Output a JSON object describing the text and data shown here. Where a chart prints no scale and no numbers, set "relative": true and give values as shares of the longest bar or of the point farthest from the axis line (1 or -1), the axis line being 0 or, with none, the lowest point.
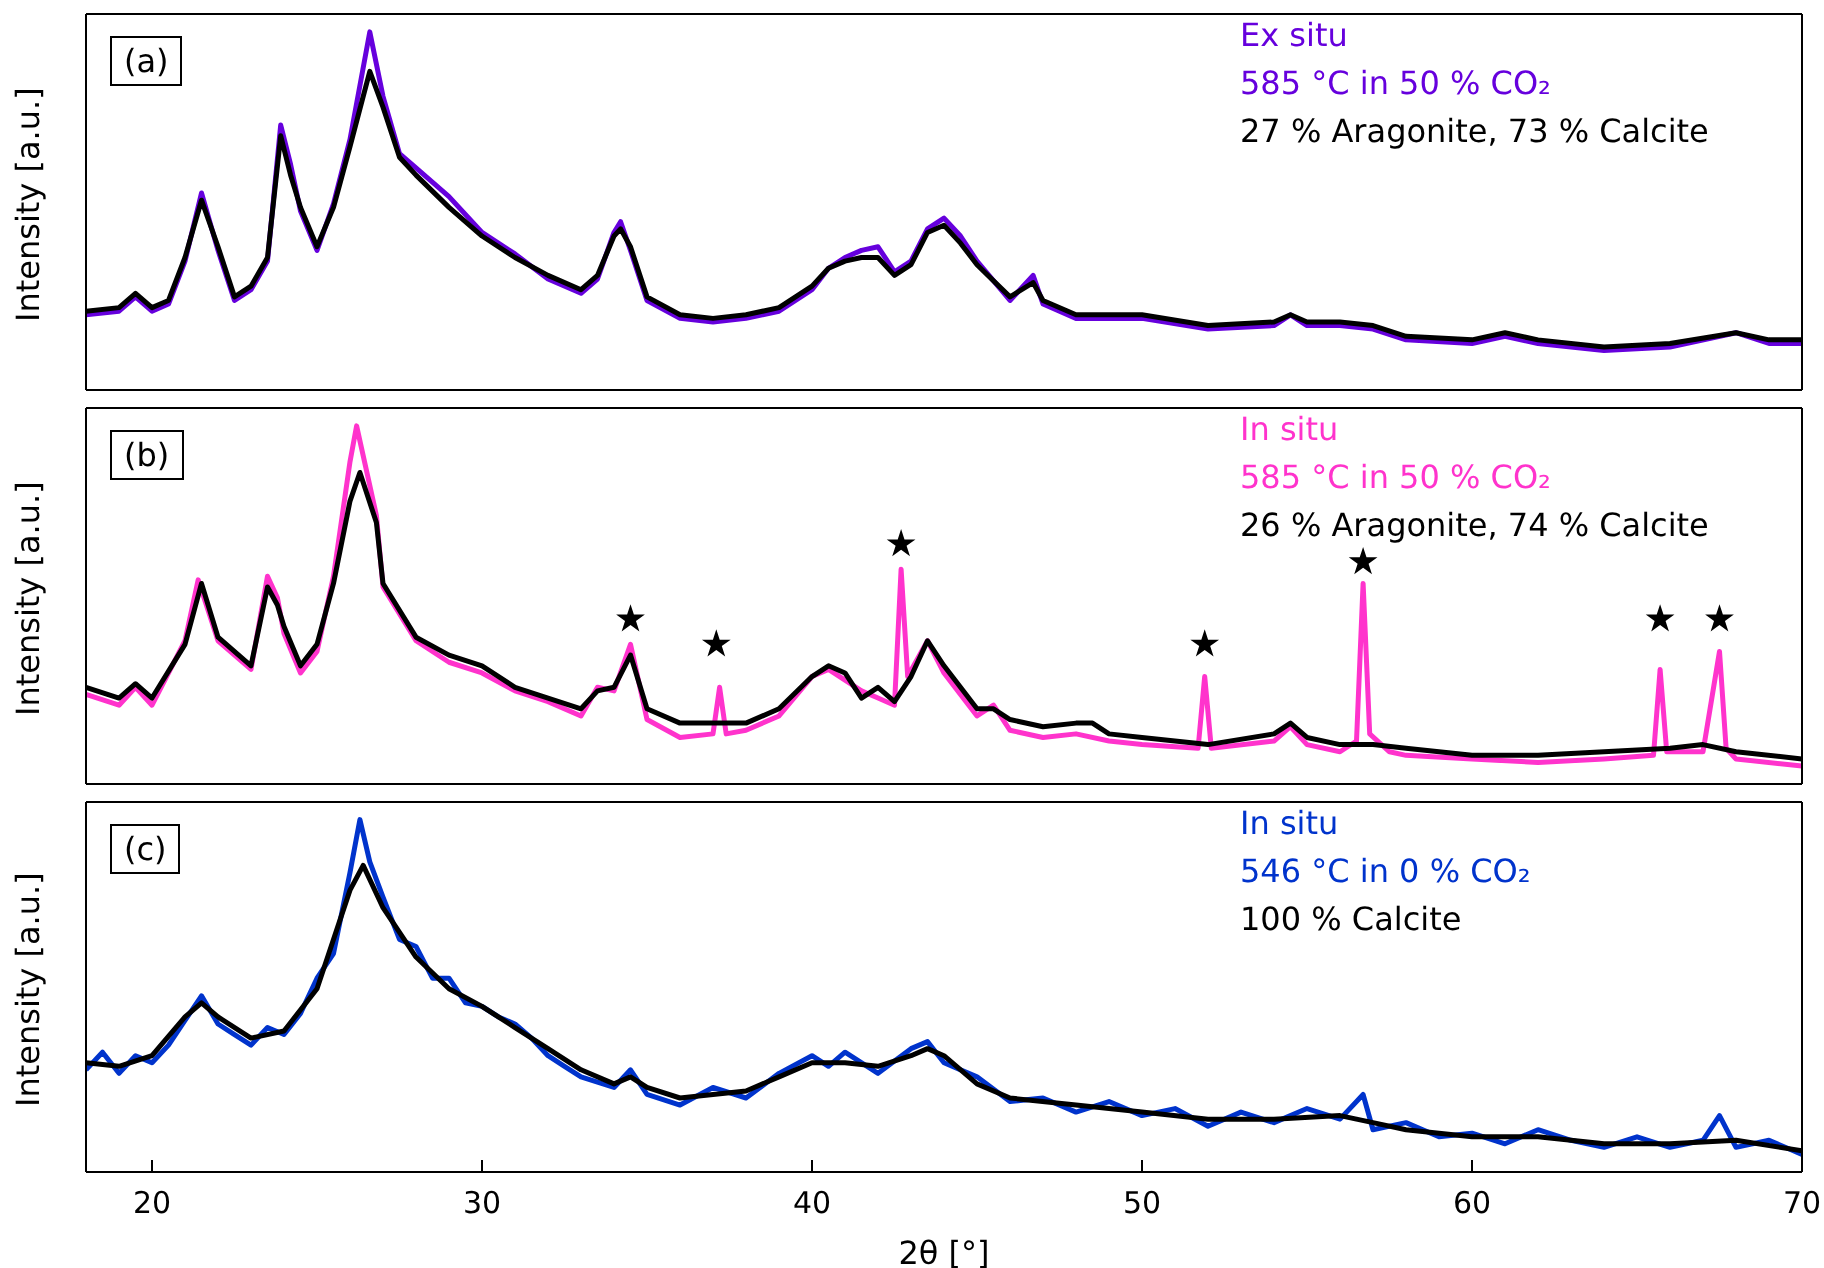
{
  "chart_data": [
    {
      "type": "line",
      "relative": true,
      "ylabel": "Intensity [a.u.]",
      "xlim": [
        18,
        70
      ],
      "xticks": [
        20,
        30,
        40,
        50,
        60,
        70
      ],
      "tick_labels": false,
      "marker": "none",
      "annotations": [
        "(a)",
        "Ex situ",
        "585 °C in 50 % CO₂",
        "27 % Aragonite, 73 % Calcite"
      ],
      "series": [
        {
          "color": "#6600dd",
          "x": [
            18,
            19,
            19.5,
            20,
            20.5,
            21,
            21.5,
            22,
            22.5,
            23,
            23.5,
            23.9,
            24.2,
            24.5,
            25,
            25.5,
            26,
            26.6,
            27,
            27.5,
            28,
            29,
            30,
            31,
            32,
            33,
            33.5,
            34,
            34.2,
            34.5,
            35,
            36,
            37,
            38,
            39,
            40,
            40.5,
            41,
            41.5,
            42,
            42.5,
            43,
            43.5,
            44,
            44.5,
            45,
            46,
            46.7,
            47,
            48,
            50,
            52,
            54,
            54.5,
            55,
            56,
            57,
            58,
            60,
            61,
            62,
            64,
            66,
            68,
            69,
            70
          ],
          "values": [
            0.21,
            0.22,
            0.26,
            0.22,
            0.24,
            0.36,
            0.55,
            0.39,
            0.25,
            0.28,
            0.36,
            0.74,
            0.63,
            0.5,
            0.39,
            0.52,
            0.7,
            1.0,
            0.82,
            0.66,
            0.62,
            0.54,
            0.44,
            0.38,
            0.31,
            0.27,
            0.31,
            0.44,
            0.47,
            0.39,
            0.25,
            0.2,
            0.19,
            0.2,
            0.22,
            0.28,
            0.34,
            0.37,
            0.39,
            0.4,
            0.33,
            0.36,
            0.45,
            0.48,
            0.43,
            0.36,
            0.25,
            0.32,
            0.24,
            0.2,
            0.2,
            0.17,
            0.18,
            0.21,
            0.18,
            0.18,
            0.17,
            0.14,
            0.13,
            0.15,
            0.13,
            0.11,
            0.12,
            0.16,
            0.13,
            0.13
          ]
        },
        {
          "color": "#000000",
          "x": [
            18,
            19,
            19.5,
            20,
            20.5,
            21,
            21.5,
            22,
            22.5,
            23,
            23.5,
            23.9,
            24.2,
            24.5,
            25,
            25.5,
            26,
            26.6,
            27,
            27.5,
            28,
            29,
            30,
            31,
            32,
            33,
            33.5,
            34,
            34.2,
            34.5,
            35,
            36,
            37,
            38,
            39,
            40,
            40.5,
            41,
            41.5,
            42,
            42.5,
            43,
            43.5,
            44,
            44.5,
            45,
            46,
            46.7,
            47,
            48,
            50,
            52,
            54,
            54.5,
            55,
            56,
            57,
            58,
            60,
            61,
            62,
            64,
            66,
            68,
            69,
            70
          ],
          "values": [
            0.22,
            0.23,
            0.27,
            0.23,
            0.25,
            0.37,
            0.53,
            0.4,
            0.26,
            0.29,
            0.37,
            0.71,
            0.6,
            0.51,
            0.4,
            0.51,
            0.68,
            0.89,
            0.79,
            0.65,
            0.6,
            0.51,
            0.43,
            0.37,
            0.32,
            0.28,
            0.32,
            0.43,
            0.45,
            0.4,
            0.26,
            0.21,
            0.2,
            0.21,
            0.23,
            0.29,
            0.34,
            0.36,
            0.37,
            0.37,
            0.32,
            0.35,
            0.44,
            0.46,
            0.41,
            0.35,
            0.26,
            0.3,
            0.25,
            0.21,
            0.21,
            0.18,
            0.19,
            0.21,
            0.19,
            0.19,
            0.18,
            0.15,
            0.14,
            0.16,
            0.14,
            0.12,
            0.13,
            0.16,
            0.14,
            0.14
          ]
        }
      ]
    },
    {
      "type": "line",
      "relative": true,
      "ylabel": "Intensity [a.u.]",
      "xlim": [
        18,
        70
      ],
      "xticks": [
        20,
        30,
        40,
        50,
        60,
        70
      ],
      "tick_labels": false,
      "marker": "none",
      "annotations": [
        "(b)",
        "In situ",
        "585 °C in 50 % CO₂",
        "26 % Aragonite, 74 % Calcite"
      ],
      "series": [
        {
          "color": "#ff33cc",
          "x": [
            18,
            19,
            19.5,
            20,
            21,
            21.4,
            22,
            23,
            23.5,
            23.8,
            24,
            24.5,
            25,
            25.5,
            26,
            26.2,
            26.8,
            27,
            28,
            29,
            30,
            31,
            32,
            33,
            33.5,
            34,
            34.5,
            35,
            36,
            37,
            37.2,
            37.4,
            38,
            39,
            40,
            40.5,
            41,
            41.5,
            42,
            42.5,
            42.7,
            42.9,
            43.5,
            44,
            45,
            45.5,
            46,
            47,
            48,
            49,
            50,
            51.7,
            51.9,
            52.1,
            54,
            54.5,
            55,
            56,
            56.5,
            56.7,
            56.9,
            57.5,
            58,
            60,
            62,
            64,
            65.5,
            65.7,
            65.9,
            67,
            67.5,
            67.7,
            68,
            70
          ],
          "values": [
            0.25,
            0.22,
            0.27,
            0.22,
            0.4,
            0.57,
            0.4,
            0.32,
            0.58,
            0.52,
            0.42,
            0.31,
            0.37,
            0.58,
            0.9,
            1.0,
            0.75,
            0.55,
            0.4,
            0.34,
            0.31,
            0.26,
            0.23,
            0.19,
            0.27,
            0.26,
            0.39,
            0.18,
            0.13,
            0.14,
            0.27,
            0.14,
            0.15,
            0.19,
            0.3,
            0.32,
            0.29,
            0.26,
            0.24,
            0.22,
            0.6,
            0.3,
            0.4,
            0.31,
            0.19,
            0.22,
            0.15,
            0.13,
            0.14,
            0.12,
            0.11,
            0.1,
            0.3,
            0.1,
            0.12,
            0.16,
            0.11,
            0.09,
            0.12,
            0.56,
            0.14,
            0.09,
            0.08,
            0.07,
            0.06,
            0.07,
            0.08,
            0.32,
            0.09,
            0.09,
            0.37,
            0.1,
            0.07,
            0.05
          ]
        },
        {
          "color": "#000000",
          "x": [
            18,
            19,
            19.5,
            20,
            21,
            21.5,
            22,
            23,
            23.5,
            23.8,
            24,
            24.5,
            25,
            25.5,
            26,
            26.3,
            26.8,
            27,
            28,
            29,
            30,
            31,
            32,
            33,
            33.5,
            34,
            34.5,
            35,
            36,
            38,
            39,
            40,
            40.5,
            41,
            41.5,
            42,
            42.5,
            43,
            43.5,
            44,
            45,
            45.5,
            46,
            47,
            48,
            48.5,
            49,
            50,
            52,
            54,
            54.5,
            55,
            56,
            57,
            58,
            60,
            62,
            64,
            66,
            67,
            68,
            70
          ],
          "values": [
            0.27,
            0.24,
            0.28,
            0.24,
            0.39,
            0.56,
            0.41,
            0.33,
            0.55,
            0.5,
            0.44,
            0.33,
            0.39,
            0.56,
            0.79,
            0.87,
            0.73,
            0.56,
            0.41,
            0.36,
            0.33,
            0.27,
            0.24,
            0.21,
            0.26,
            0.27,
            0.36,
            0.21,
            0.17,
            0.17,
            0.21,
            0.3,
            0.33,
            0.31,
            0.24,
            0.27,
            0.23,
            0.3,
            0.4,
            0.33,
            0.21,
            0.21,
            0.18,
            0.16,
            0.17,
            0.17,
            0.14,
            0.13,
            0.11,
            0.14,
            0.17,
            0.13,
            0.11,
            0.11,
            0.1,
            0.08,
            0.08,
            0.09,
            0.1,
            0.11,
            0.09,
            0.07
          ]
        },
        {
          "type": "scatter",
          "marker": "star",
          "color": "#000000",
          "x": [
            34.5,
            37.1,
            42.7,
            51.9,
            56.7,
            65.7,
            67.5
          ],
          "values": [
            0.46,
            0.39,
            0.67,
            0.39,
            0.62,
            0.46,
            0.46
          ]
        }
      ]
    },
    {
      "type": "line",
      "relative": true,
      "ylabel": "Intensity [a.u.]",
      "xlabel": "2θ [°]",
      "xlim": [
        18,
        70
      ],
      "xticks": [
        20,
        30,
        40,
        50,
        60,
        70
      ],
      "marker": "none",
      "annotations": [
        "(c)",
        "In situ",
        "546 °C in 0 % CO₂",
        "100 % Calcite"
      ],
      "series": [
        {
          "color": "#0033cc",
          "x": [
            18,
            18.5,
            19,
            19.5,
            20,
            20.5,
            21,
            21.5,
            22,
            22.5,
            23,
            23.5,
            24,
            24.5,
            25,
            25.5,
            26,
            26.3,
            26.6,
            27,
            27.5,
            28,
            28.5,
            29,
            29.5,
            30,
            30.5,
            31,
            31.5,
            32,
            32.5,
            33,
            34,
            34.5,
            35,
            36,
            37,
            38,
            39,
            40,
            40.5,
            41,
            42,
            43,
            43.5,
            44,
            45,
            46,
            47,
            48,
            49,
            50,
            51,
            52,
            53,
            54,
            55,
            56,
            56.7,
            57,
            58,
            59,
            60,
            61,
            62,
            63,
            64,
            65,
            66,
            67,
            67.5,
            68,
            69,
            70
          ],
          "values": [
            0.29,
            0.34,
            0.28,
            0.33,
            0.31,
            0.36,
            0.43,
            0.5,
            0.42,
            0.39,
            0.36,
            0.41,
            0.39,
            0.45,
            0.55,
            0.62,
            0.85,
            1.0,
            0.88,
            0.78,
            0.66,
            0.64,
            0.55,
            0.55,
            0.48,
            0.47,
            0.44,
            0.42,
            0.38,
            0.33,
            0.3,
            0.27,
            0.24,
            0.29,
            0.22,
            0.19,
            0.24,
            0.21,
            0.28,
            0.33,
            0.3,
            0.34,
            0.28,
            0.35,
            0.37,
            0.31,
            0.27,
            0.2,
            0.21,
            0.17,
            0.2,
            0.16,
            0.18,
            0.13,
            0.17,
            0.14,
            0.18,
            0.15,
            0.22,
            0.12,
            0.14,
            0.1,
            0.11,
            0.08,
            0.12,
            0.09,
            0.07,
            0.1,
            0.07,
            0.09,
            0.16,
            0.07,
            0.09,
            0.05
          ]
        },
        {
          "color": "#000000",
          "x": [
            18,
            19,
            20,
            21,
            21.5,
            22,
            23,
            24,
            25,
            26,
            26.4,
            27,
            28,
            29,
            30,
            31,
            32,
            33,
            34,
            34.5,
            35,
            36,
            38,
            39,
            40,
            41,
            42,
            43,
            43.5,
            44,
            45,
            46,
            48,
            50,
            52,
            54,
            56,
            57,
            58,
            60,
            62,
            64,
            66,
            68,
            70
          ],
          "values": [
            0.31,
            0.3,
            0.33,
            0.44,
            0.48,
            0.44,
            0.38,
            0.4,
            0.52,
            0.8,
            0.87,
            0.75,
            0.61,
            0.52,
            0.47,
            0.41,
            0.35,
            0.29,
            0.25,
            0.27,
            0.24,
            0.21,
            0.23,
            0.27,
            0.31,
            0.31,
            0.3,
            0.33,
            0.35,
            0.33,
            0.25,
            0.21,
            0.19,
            0.17,
            0.15,
            0.15,
            0.16,
            0.14,
            0.12,
            0.1,
            0.1,
            0.08,
            0.08,
            0.09,
            0.06
          ]
        }
      ]
    }
  ]
}
